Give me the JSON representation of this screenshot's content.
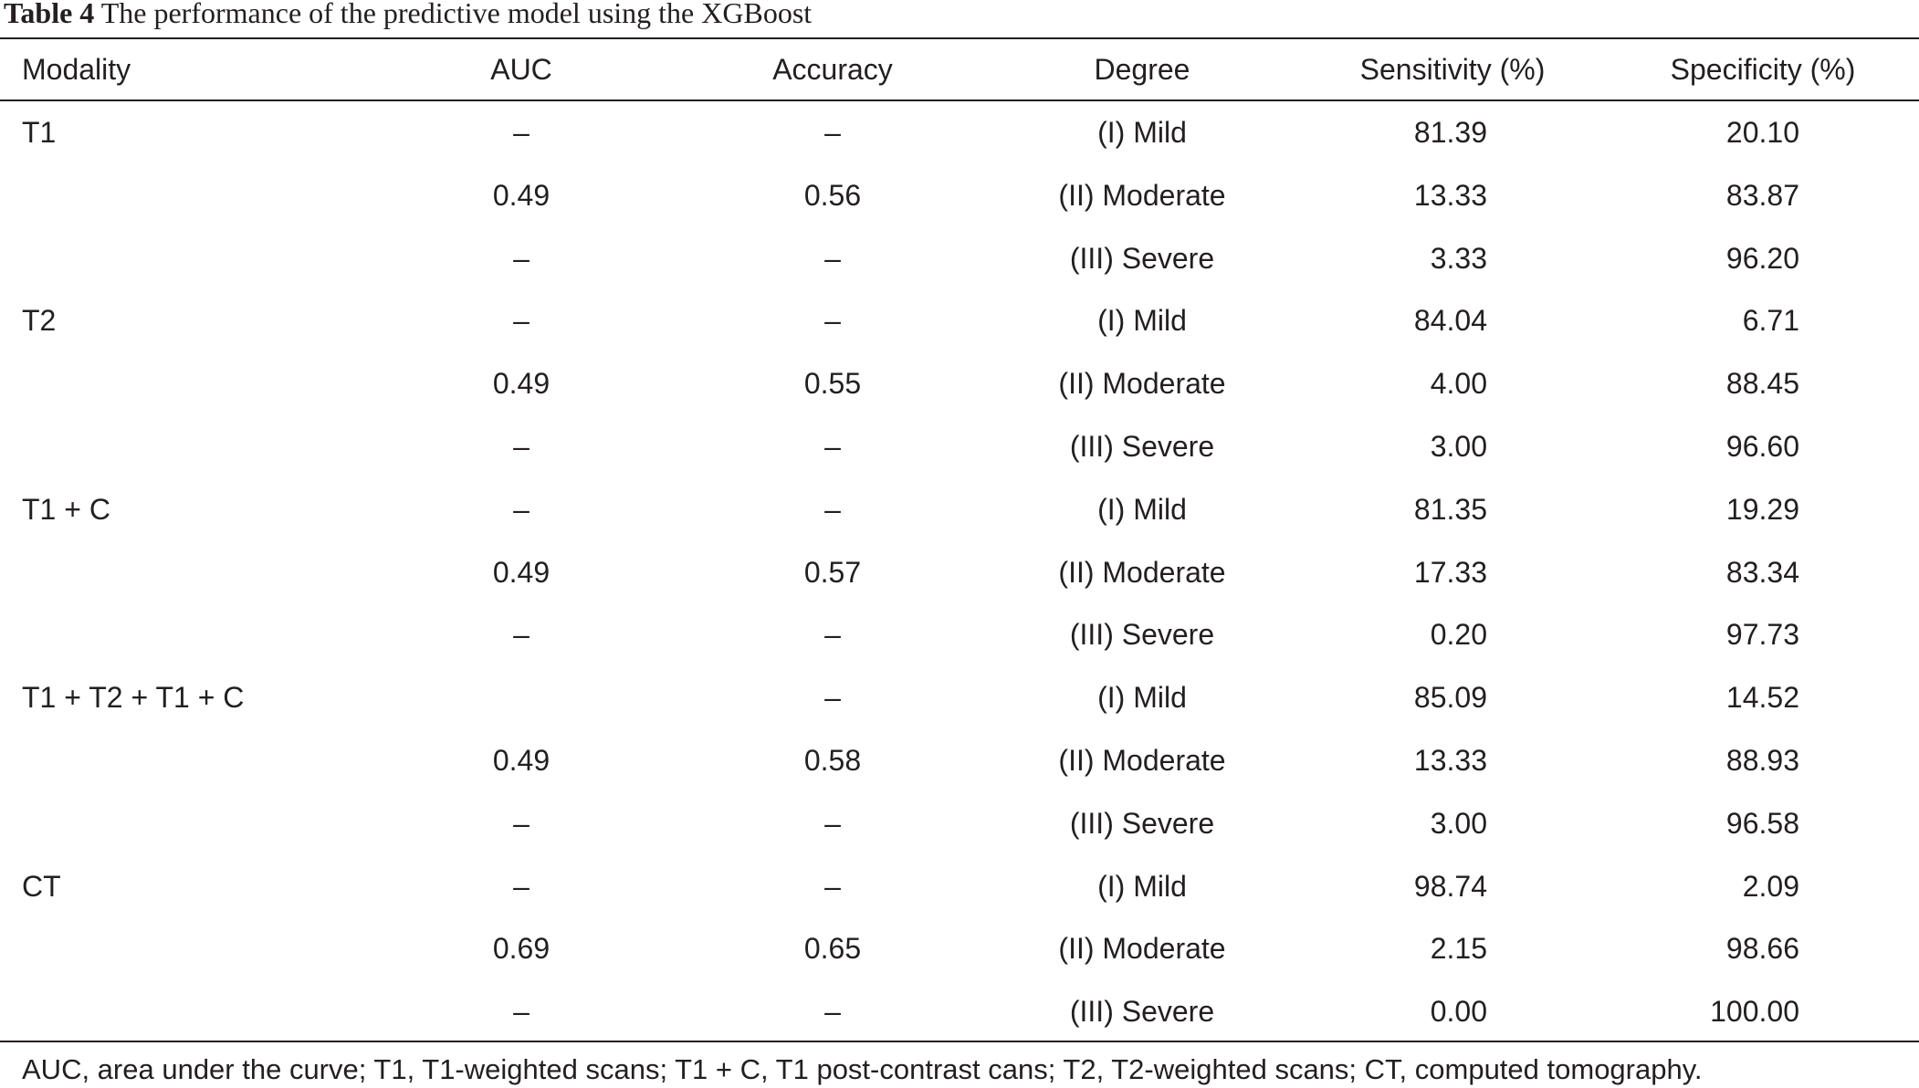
{
  "table": {
    "label": "Table 4",
    "caption": "The performance of the predictive model using the XGBoost",
    "headers": [
      "Modality",
      "AUC",
      "Accuracy",
      "Degree",
      "Sensitivity (%)",
      "Specificity (%)"
    ],
    "rows": [
      {
        "modality": "T1",
        "auc": "–",
        "accuracy": "–",
        "degree": "(I) Mild",
        "sensitivity": "81.39",
        "specificity": "20.10"
      },
      {
        "modality": "",
        "auc": "0.49",
        "accuracy": "0.56",
        "degree": "(II) Moderate",
        "sensitivity": "13.33",
        "specificity": "83.87"
      },
      {
        "modality": "",
        "auc": "–",
        "accuracy": "–",
        "degree": "(III) Severe",
        "sensitivity": "3.33",
        "specificity": "96.20"
      },
      {
        "modality": "T2",
        "auc": "–",
        "accuracy": "–",
        "degree": "(I) Mild",
        "sensitivity": "84.04",
        "specificity": "6.71"
      },
      {
        "modality": "",
        "auc": "0.49",
        "accuracy": "0.55",
        "degree": "(II) Moderate",
        "sensitivity": "4.00",
        "specificity": "88.45"
      },
      {
        "modality": "",
        "auc": "–",
        "accuracy": "–",
        "degree": "(III) Severe",
        "sensitivity": "3.00",
        "specificity": "96.60"
      },
      {
        "modality": "T1 + C",
        "auc": "–",
        "accuracy": "–",
        "degree": "(I) Mild",
        "sensitivity": "81.35",
        "specificity": "19.29"
      },
      {
        "modality": "",
        "auc": "0.49",
        "accuracy": "0.57",
        "degree": "(II) Moderate",
        "sensitivity": "17.33",
        "specificity": "83.34"
      },
      {
        "modality": "",
        "auc": "–",
        "accuracy": "–",
        "degree": "(III) Severe",
        "sensitivity": "0.20",
        "specificity": "97.73"
      },
      {
        "modality": "T1 + T2 + T1 + C",
        "auc": "",
        "accuracy": "–",
        "degree": "(I) Mild",
        "sensitivity": "85.09",
        "specificity": "14.52"
      },
      {
        "modality": "",
        "auc": "0.49",
        "accuracy": "0.58",
        "degree": "(II) Moderate",
        "sensitivity": "13.33",
        "specificity": "88.93"
      },
      {
        "modality": "",
        "auc": "–",
        "accuracy": "–",
        "degree": "(III) Severe",
        "sensitivity": "3.00",
        "specificity": "96.58"
      },
      {
        "modality": "CT",
        "auc": "–",
        "accuracy": "–",
        "degree": "(I) Mild",
        "sensitivity": "98.74",
        "specificity": "2.09"
      },
      {
        "modality": "",
        "auc": "0.69",
        "accuracy": "0.65",
        "degree": "(II) Moderate",
        "sensitivity": "2.15",
        "specificity": "98.66"
      },
      {
        "modality": "",
        "auc": "–",
        "accuracy": "–",
        "degree": "(III) Severe",
        "sensitivity": "0.00",
        "specificity": "100.00"
      }
    ],
    "footnote": "AUC, area under the curve; T1, T1-weighted scans; T1 + C, T1 post-contrast cans; T2, T2-weighted scans; CT, computed tomography."
  }
}
